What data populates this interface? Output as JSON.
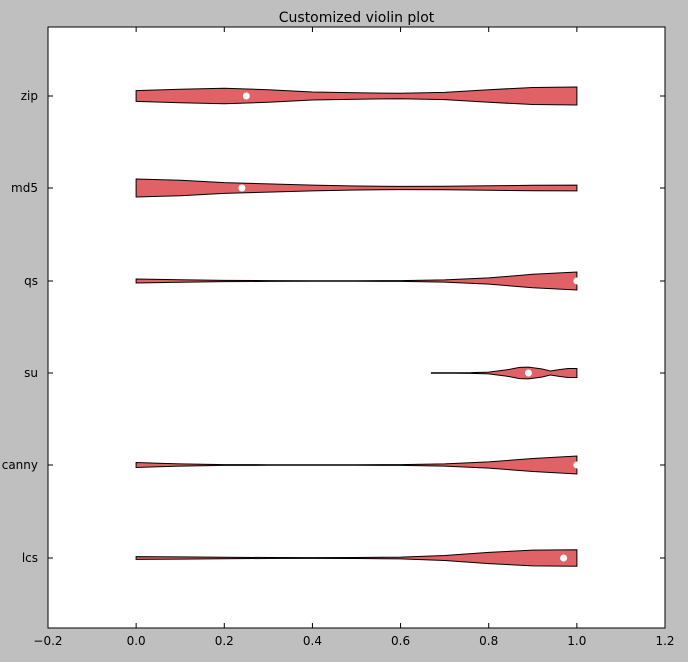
{
  "chart_data": {
    "type": "violin",
    "title": "Customized violin plot",
    "xlabel": "",
    "ylabel": "",
    "xlim": [
      -0.2,
      1.2
    ],
    "x_ticks": [
      "−0.2",
      "0.0",
      "0.2",
      "0.4",
      "0.6",
      "0.8",
      "1.0",
      "1.2"
    ],
    "x_tick_values": [
      -0.2,
      0.0,
      0.2,
      0.4,
      0.6,
      0.8,
      1.0,
      1.2
    ],
    "grid": false,
    "fill_color": "#e06166",
    "edge_color": "#000000",
    "median_color": "#ffffff",
    "categories": [
      "zip",
      "md5",
      "qs",
      "su",
      "canny",
      "lcs"
    ],
    "violins": [
      {
        "name": "zip",
        "min": 0.0,
        "max": 1.0,
        "median": 0.25,
        "profile": [
          [
            0.0,
            0.6
          ],
          [
            0.1,
            0.75
          ],
          [
            0.2,
            0.85
          ],
          [
            0.3,
            0.7
          ],
          [
            0.4,
            0.45
          ],
          [
            0.5,
            0.35
          ],
          [
            0.6,
            0.3
          ],
          [
            0.7,
            0.4
          ],
          [
            0.8,
            0.7
          ],
          [
            0.9,
            0.95
          ],
          [
            1.0,
            1.0
          ]
        ]
      },
      {
        "name": "md5",
        "min": 0.0,
        "max": 1.0,
        "median": 0.24,
        "profile": [
          [
            0.0,
            1.0
          ],
          [
            0.1,
            0.85
          ],
          [
            0.2,
            0.6
          ],
          [
            0.3,
            0.45
          ],
          [
            0.4,
            0.32
          ],
          [
            0.5,
            0.22
          ],
          [
            0.6,
            0.18
          ],
          [
            0.7,
            0.2
          ],
          [
            0.8,
            0.25
          ],
          [
            0.9,
            0.3
          ],
          [
            1.0,
            0.32
          ]
        ]
      },
      {
        "name": "qs",
        "min": 0.0,
        "max": 1.0,
        "median": 1.0,
        "profile": [
          [
            0.0,
            0.22
          ],
          [
            0.1,
            0.14
          ],
          [
            0.2,
            0.07
          ],
          [
            0.3,
            0.04
          ],
          [
            0.4,
            0.03
          ],
          [
            0.5,
            0.03
          ],
          [
            0.6,
            0.04
          ],
          [
            0.7,
            0.12
          ],
          [
            0.8,
            0.35
          ],
          [
            0.9,
            0.75
          ],
          [
            1.0,
            1.0
          ]
        ]
      },
      {
        "name": "su",
        "min": 0.67,
        "max": 1.0,
        "median": 0.89,
        "profile": [
          [
            0.67,
            0.02
          ],
          [
            0.72,
            0.03
          ],
          [
            0.76,
            0.05
          ],
          [
            0.8,
            0.1
          ],
          [
            0.84,
            0.35
          ],
          [
            0.87,
            0.62
          ],
          [
            0.89,
            0.66
          ],
          [
            0.92,
            0.45
          ],
          [
            0.94,
            0.22
          ],
          [
            0.96,
            0.38
          ],
          [
            0.98,
            0.5
          ],
          [
            1.0,
            0.5
          ]
        ]
      },
      {
        "name": "canny",
        "min": 0.0,
        "max": 1.0,
        "median": 1.0,
        "profile": [
          [
            0.0,
            0.28
          ],
          [
            0.05,
            0.2
          ],
          [
            0.1,
            0.12
          ],
          [
            0.2,
            0.05
          ],
          [
            0.3,
            0.03
          ],
          [
            0.4,
            0.03
          ],
          [
            0.5,
            0.03
          ],
          [
            0.6,
            0.04
          ],
          [
            0.7,
            0.12
          ],
          [
            0.8,
            0.35
          ],
          [
            0.9,
            0.72
          ],
          [
            1.0,
            1.0
          ]
        ]
      },
      {
        "name": "lcs",
        "min": 0.0,
        "max": 1.0,
        "median": 0.97,
        "profile": [
          [
            0.0,
            0.16
          ],
          [
            0.1,
            0.12
          ],
          [
            0.2,
            0.08
          ],
          [
            0.3,
            0.05
          ],
          [
            0.4,
            0.04
          ],
          [
            0.5,
            0.05
          ],
          [
            0.6,
            0.1
          ],
          [
            0.7,
            0.28
          ],
          [
            0.8,
            0.62
          ],
          [
            0.9,
            0.88
          ],
          [
            1.0,
            0.92
          ]
        ]
      }
    ]
  }
}
